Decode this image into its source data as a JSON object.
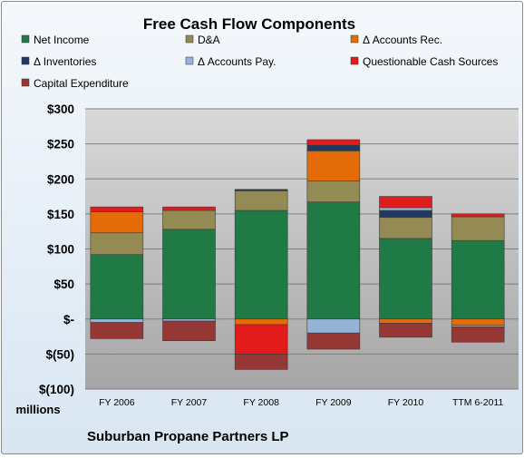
{
  "chart_data": {
    "type": "bar",
    "stacked": true,
    "title": "Free Cash Flow Components",
    "subtitle": "Suburban Propane Partners LP",
    "units_label": "millions",
    "categories": [
      "FY 2006",
      "FY 2007",
      "FY 2008",
      "FY 2009",
      "FY 2010",
      "TTM 6-2011"
    ],
    "ylim": [
      -100,
      300
    ],
    "yticks": [
      -100,
      -50,
      0,
      50,
      100,
      150,
      200,
      250,
      300
    ],
    "ytick_labels": [
      "$(100)",
      "$(50)",
      "$-",
      "$50",
      "$100",
      "$150",
      "$200",
      "$250",
      "$300"
    ],
    "grid": true,
    "legend_position": "top",
    "series": [
      {
        "name": "Net Income",
        "color": "#1f7a45",
        "values": [
          92,
          128,
          155,
          167,
          115,
          112
        ]
      },
      {
        "name": "D&A",
        "color": "#948a54",
        "values": [
          31,
          27,
          28,
          30,
          30,
          34
        ]
      },
      {
        "name": "Δ Accounts Rec.",
        "color": "#e36c09",
        "values": [
          30,
          0,
          -8,
          43,
          -6,
          -9
        ]
      },
      {
        "name": "Δ Inventories",
        "color": "#1f3864",
        "values": [
          0,
          0,
          2,
          8,
          10,
          0
        ]
      },
      {
        "name": "Δ Accounts Pay.",
        "color": "#95b3d7",
        "values": [
          -5,
          -3,
          0,
          -20,
          4,
          -2
        ]
      },
      {
        "name": "Questionable Cash Sources",
        "color": "#e31b1b",
        "values": [
          7,
          5,
          -42,
          8,
          16,
          4
        ]
      },
      {
        "name": "Capital Expenditure",
        "color": "#953735",
        "values": [
          -23,
          -28,
          -22,
          -23,
          -20,
          -22
        ]
      }
    ]
  }
}
